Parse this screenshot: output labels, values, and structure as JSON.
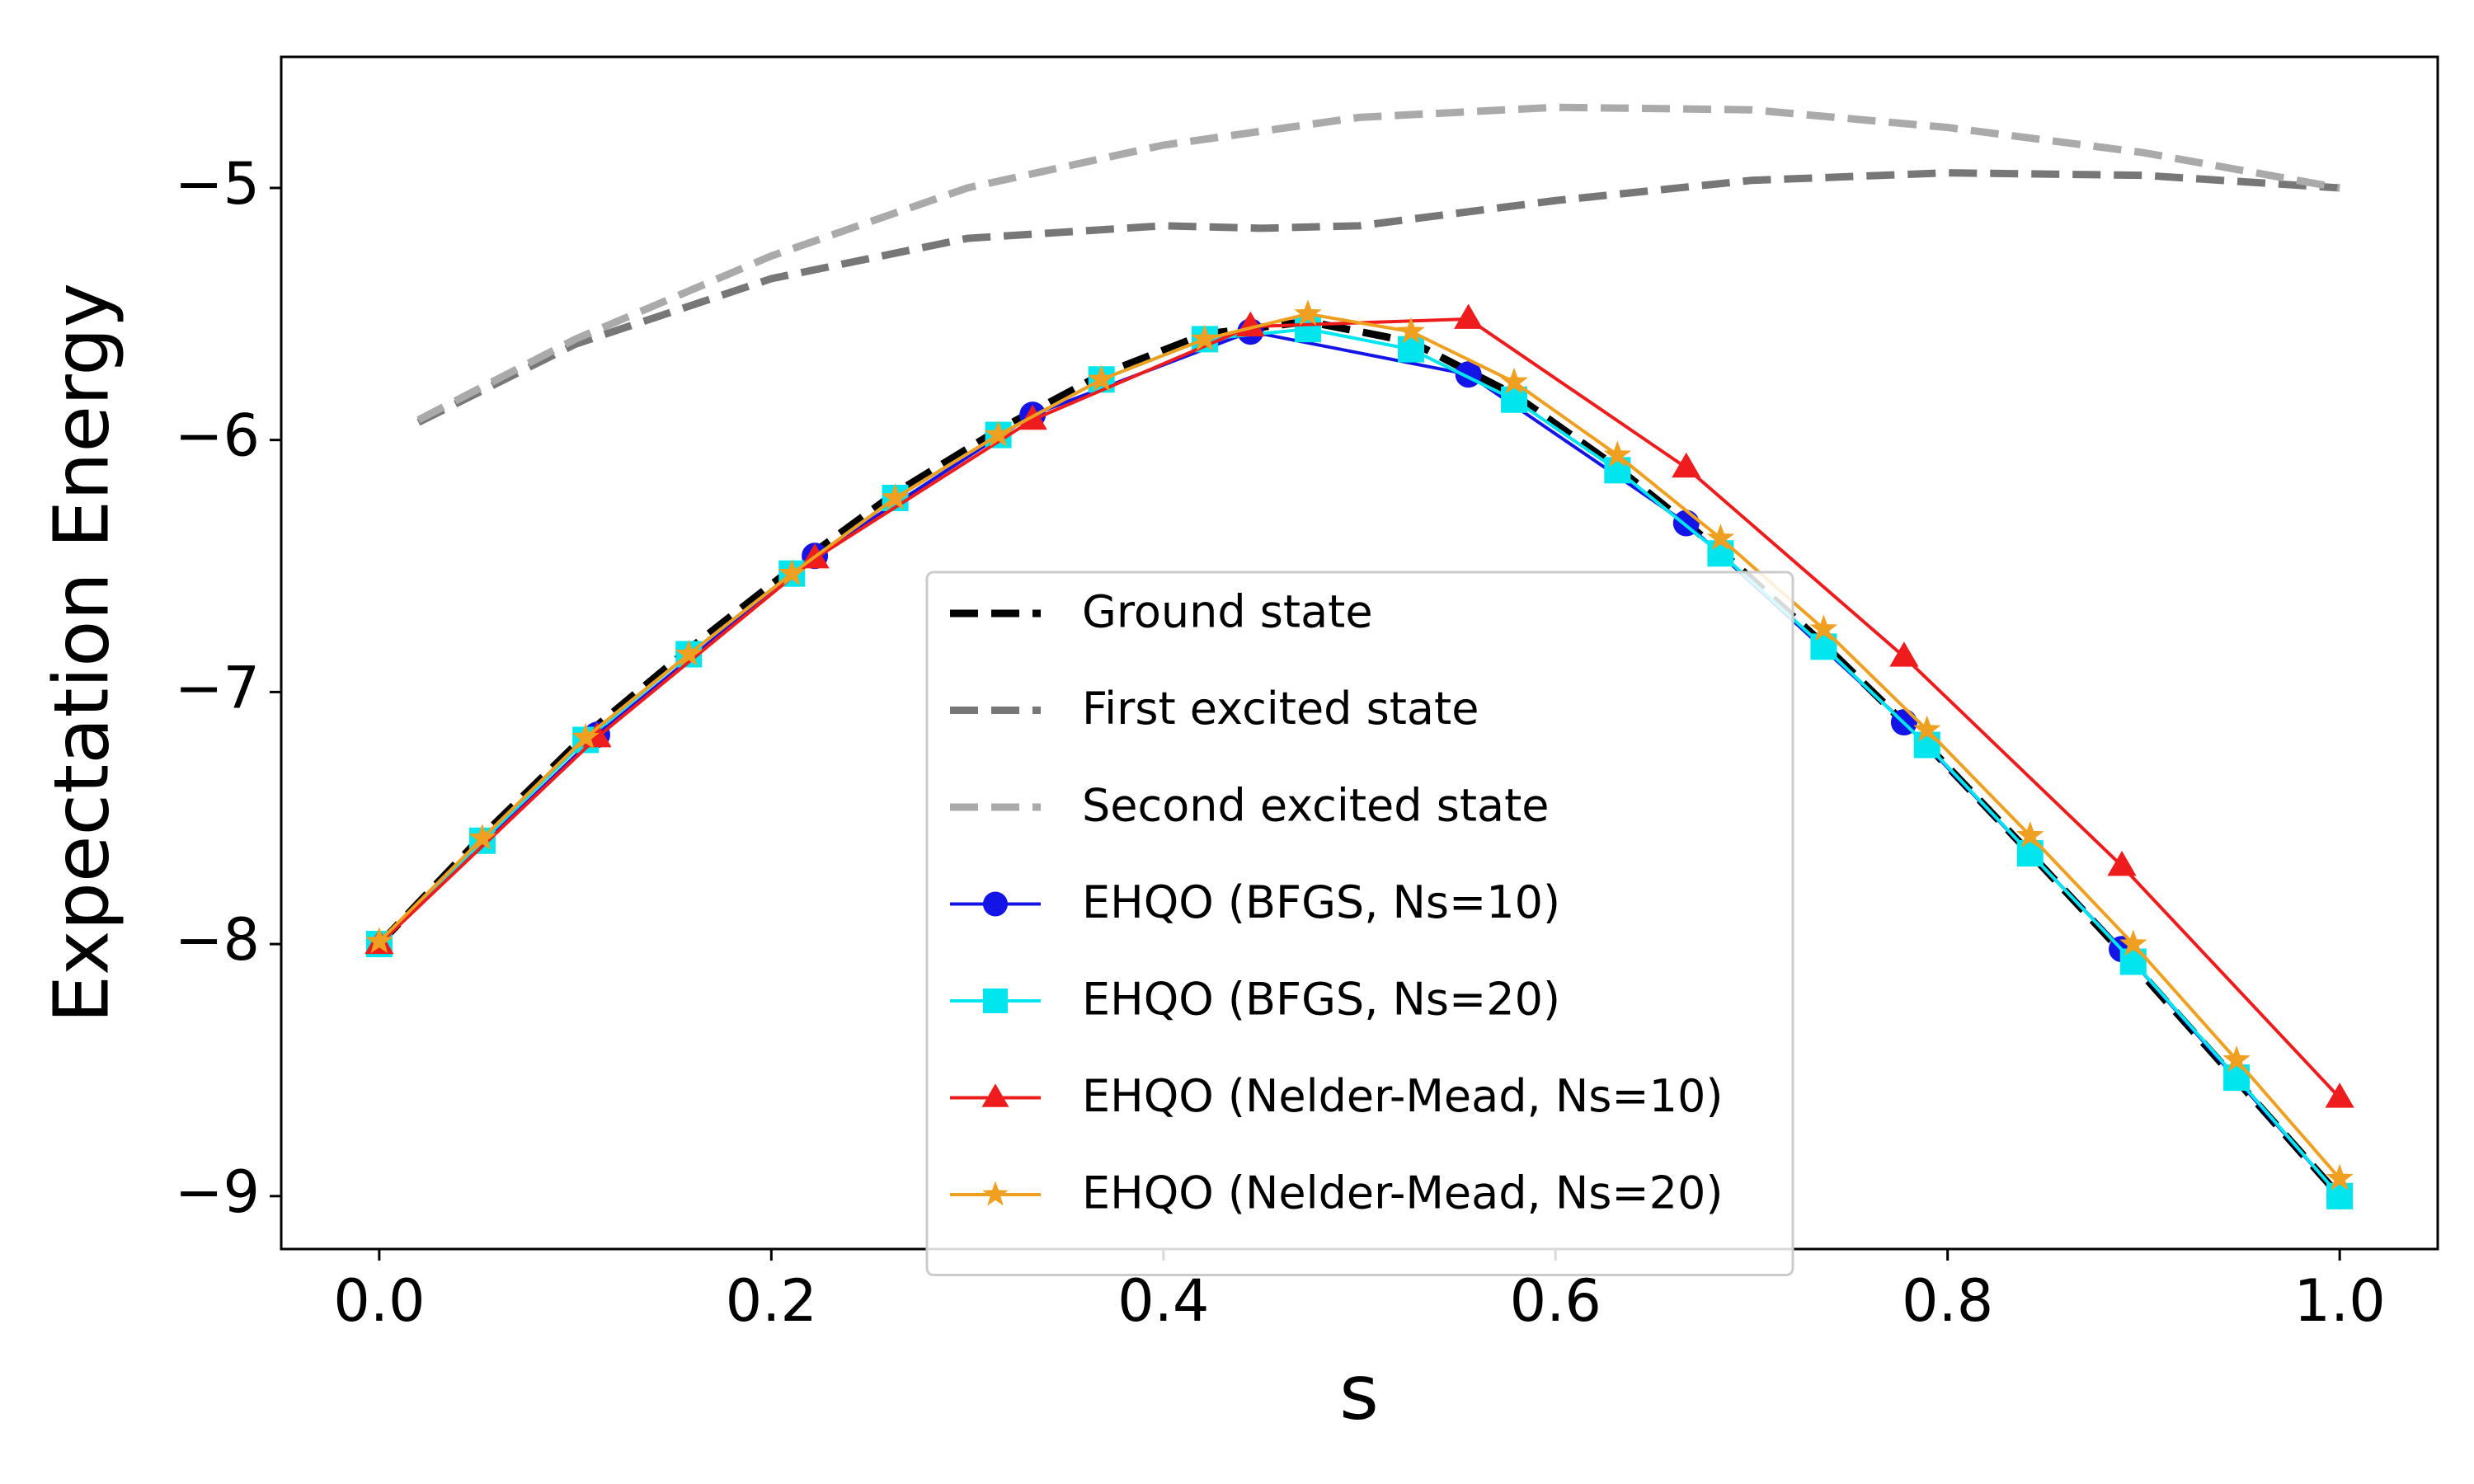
{
  "chart_data": {
    "type": "line",
    "xlabel": "s",
    "ylabel": "Expectation Energy",
    "xlim": [
      -0.05,
      1.05
    ],
    "ylim": [
      -9.21,
      -4.48
    ],
    "xticks": [
      {
        "value": 0,
        "label": "0.0"
      },
      0.2,
      0.4,
      0.6,
      0.8,
      {
        "value": 1,
        "label": "1.0"
      }
    ],
    "yticks": [
      {
        "value": -9,
        "label": "−9"
      },
      {
        "value": -8,
        "label": "−8"
      },
      {
        "value": -7,
        "label": "−7"
      },
      {
        "value": -6,
        "label": "−6"
      },
      {
        "value": -5,
        "label": "−5"
      }
    ],
    "grid": false,
    "legend": "lower center",
    "series": [
      {
        "name": "Ground state",
        "color": "#000000",
        "dashed": true,
        "marker": "none",
        "x": [
          0,
          0.0526,
          0.1053,
          0.1579,
          0.2105,
          0.2632,
          0.3158,
          0.3684,
          0.4211,
          0.4737,
          0.5263,
          0.5789,
          0.6316,
          0.6842,
          0.7368,
          0.7895,
          0.8421,
          0.8947,
          0.9474,
          1.0
        ],
        "values": [
          -8.0,
          -7.57,
          -7.17,
          -6.83,
          -6.51,
          -6.21,
          -5.96,
          -5.74,
          -5.58,
          -5.53,
          -5.61,
          -5.82,
          -6.11,
          -6.44,
          -6.81,
          -7.21,
          -7.64,
          -8.08,
          -8.54,
          -9.0
        ]
      },
      {
        "name": "First excited state",
        "color": "#777777",
        "dashed": true,
        "marker": "none",
        "x": [
          0.02,
          0.1,
          0.2,
          0.3,
          0.4,
          0.45,
          0.5,
          0.6,
          0.7,
          0.8,
          0.9,
          1.0
        ],
        "values": [
          -5.93,
          -5.62,
          -5.36,
          -5.2,
          -5.15,
          -5.16,
          -5.15,
          -5.05,
          -4.97,
          -4.94,
          -4.95,
          -5.0
        ]
      },
      {
        "name": "Second excited state",
        "color": "#aaaaaa",
        "dashed": true,
        "marker": "none",
        "x": [
          0.02,
          0.1,
          0.2,
          0.3,
          0.4,
          0.5,
          0.6,
          0.7,
          0.8,
          0.9,
          1.0
        ],
        "values": [
          -5.92,
          -5.6,
          -5.27,
          -5.0,
          -4.83,
          -4.72,
          -4.68,
          -4.69,
          -4.76,
          -4.86,
          -5.0
        ]
      },
      {
        "name": "EHQO (BFGS, Ns=10)",
        "color": "#1414e6",
        "dashed": false,
        "marker": "circle",
        "x": [
          0,
          0.1111,
          0.2222,
          0.3333,
          0.4444,
          0.5556,
          0.6667,
          0.7778,
          0.8889,
          1.0
        ],
        "values": [
          -8.0,
          -7.17,
          -6.46,
          -5.9,
          -5.57,
          -5.74,
          -6.33,
          -7.12,
          -8.02,
          -9.0
        ]
      },
      {
        "name": "EHQO (BFGS, Ns=20)",
        "color": "#00e5ee",
        "dashed": false,
        "marker": "square",
        "x": [
          0,
          0.0526,
          0.1053,
          0.1579,
          0.2105,
          0.2632,
          0.3158,
          0.3684,
          0.4211,
          0.4737,
          0.5263,
          0.5789,
          0.6316,
          0.6842,
          0.7368,
          0.7895,
          0.8421,
          0.8947,
          0.9474,
          1.0
        ],
        "values": [
          -8.0,
          -7.59,
          -7.19,
          -6.85,
          -6.53,
          -6.23,
          -5.98,
          -5.76,
          -5.6,
          -5.56,
          -5.64,
          -5.84,
          -6.12,
          -6.45,
          -6.82,
          -7.21,
          -7.64,
          -8.07,
          -8.53,
          -9.0
        ]
      },
      {
        "name": "EHQO (Nelder-Mead, Ns=10)",
        "color": "#ee1c1c",
        "dashed": false,
        "marker": "triangle",
        "x": [
          0,
          0.1111,
          0.2222,
          0.3333,
          0.4444,
          0.5556,
          0.6667,
          0.7778,
          0.8889,
          1.0
        ],
        "values": [
          -8.0,
          -7.18,
          -6.47,
          -5.92,
          -5.55,
          -5.52,
          -6.11,
          -6.86,
          -7.69,
          -8.61
        ]
      },
      {
        "name": "EHQO (Nelder-Mead, Ns=20)",
        "color": "#f0a020",
        "dashed": false,
        "marker": "star",
        "x": [
          0,
          0.0526,
          0.1053,
          0.1579,
          0.2105,
          0.2632,
          0.3158,
          0.3684,
          0.4211,
          0.4737,
          0.5263,
          0.5789,
          0.6316,
          0.6842,
          0.7368,
          0.7895,
          0.8421,
          0.8947,
          0.9474,
          1.0
        ],
        "values": [
          -7.99,
          -7.58,
          -7.18,
          -6.85,
          -6.53,
          -6.23,
          -5.98,
          -5.76,
          -5.6,
          -5.5,
          -5.57,
          -5.77,
          -6.06,
          -6.39,
          -6.75,
          -7.15,
          -7.57,
          -8.0,
          -8.46,
          -8.93
        ]
      }
    ]
  }
}
